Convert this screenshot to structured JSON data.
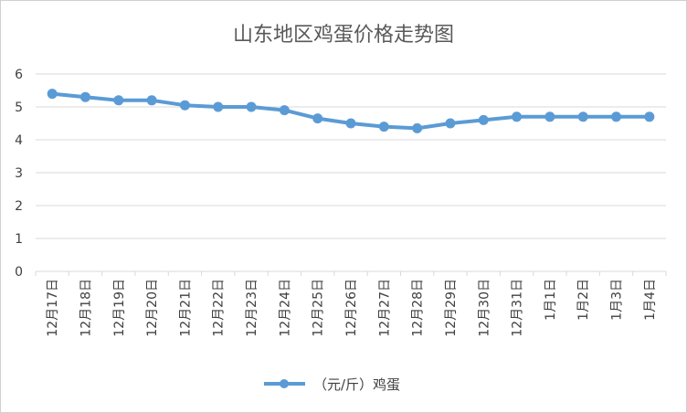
{
  "chart_data": {
    "type": "line",
    "title": "山东地区鸡蛋价格走势图",
    "xlabel": "",
    "ylabel": "",
    "categories": [
      "12月17日",
      "12月18日",
      "12月19日",
      "12月20日",
      "12月21日",
      "12月22日",
      "12月23日",
      "12月24日",
      "12月25日",
      "12月26日",
      "12月27日",
      "12月28日",
      "12月29日",
      "12月30日",
      "12月31日",
      "1月1日",
      "1月2日",
      "1月3日",
      "1月4日"
    ],
    "series": [
      {
        "name": "（元/斤）鸡蛋",
        "values": [
          5.4,
          5.3,
          5.2,
          5.2,
          5.05,
          5.0,
          5.0,
          4.9,
          4.65,
          4.5,
          4.4,
          4.35,
          4.5,
          4.6,
          4.7,
          4.7,
          4.7,
          4.7,
          4.7
        ],
        "color": "#5b9bd5"
      }
    ],
    "ylim": [
      0,
      6
    ],
    "yticks": [
      "0",
      "1",
      "2",
      "3",
      "4",
      "5",
      "6"
    ],
    "grid": true,
    "legend": "bottom",
    "gridline_color": "#d9d9d9"
  }
}
